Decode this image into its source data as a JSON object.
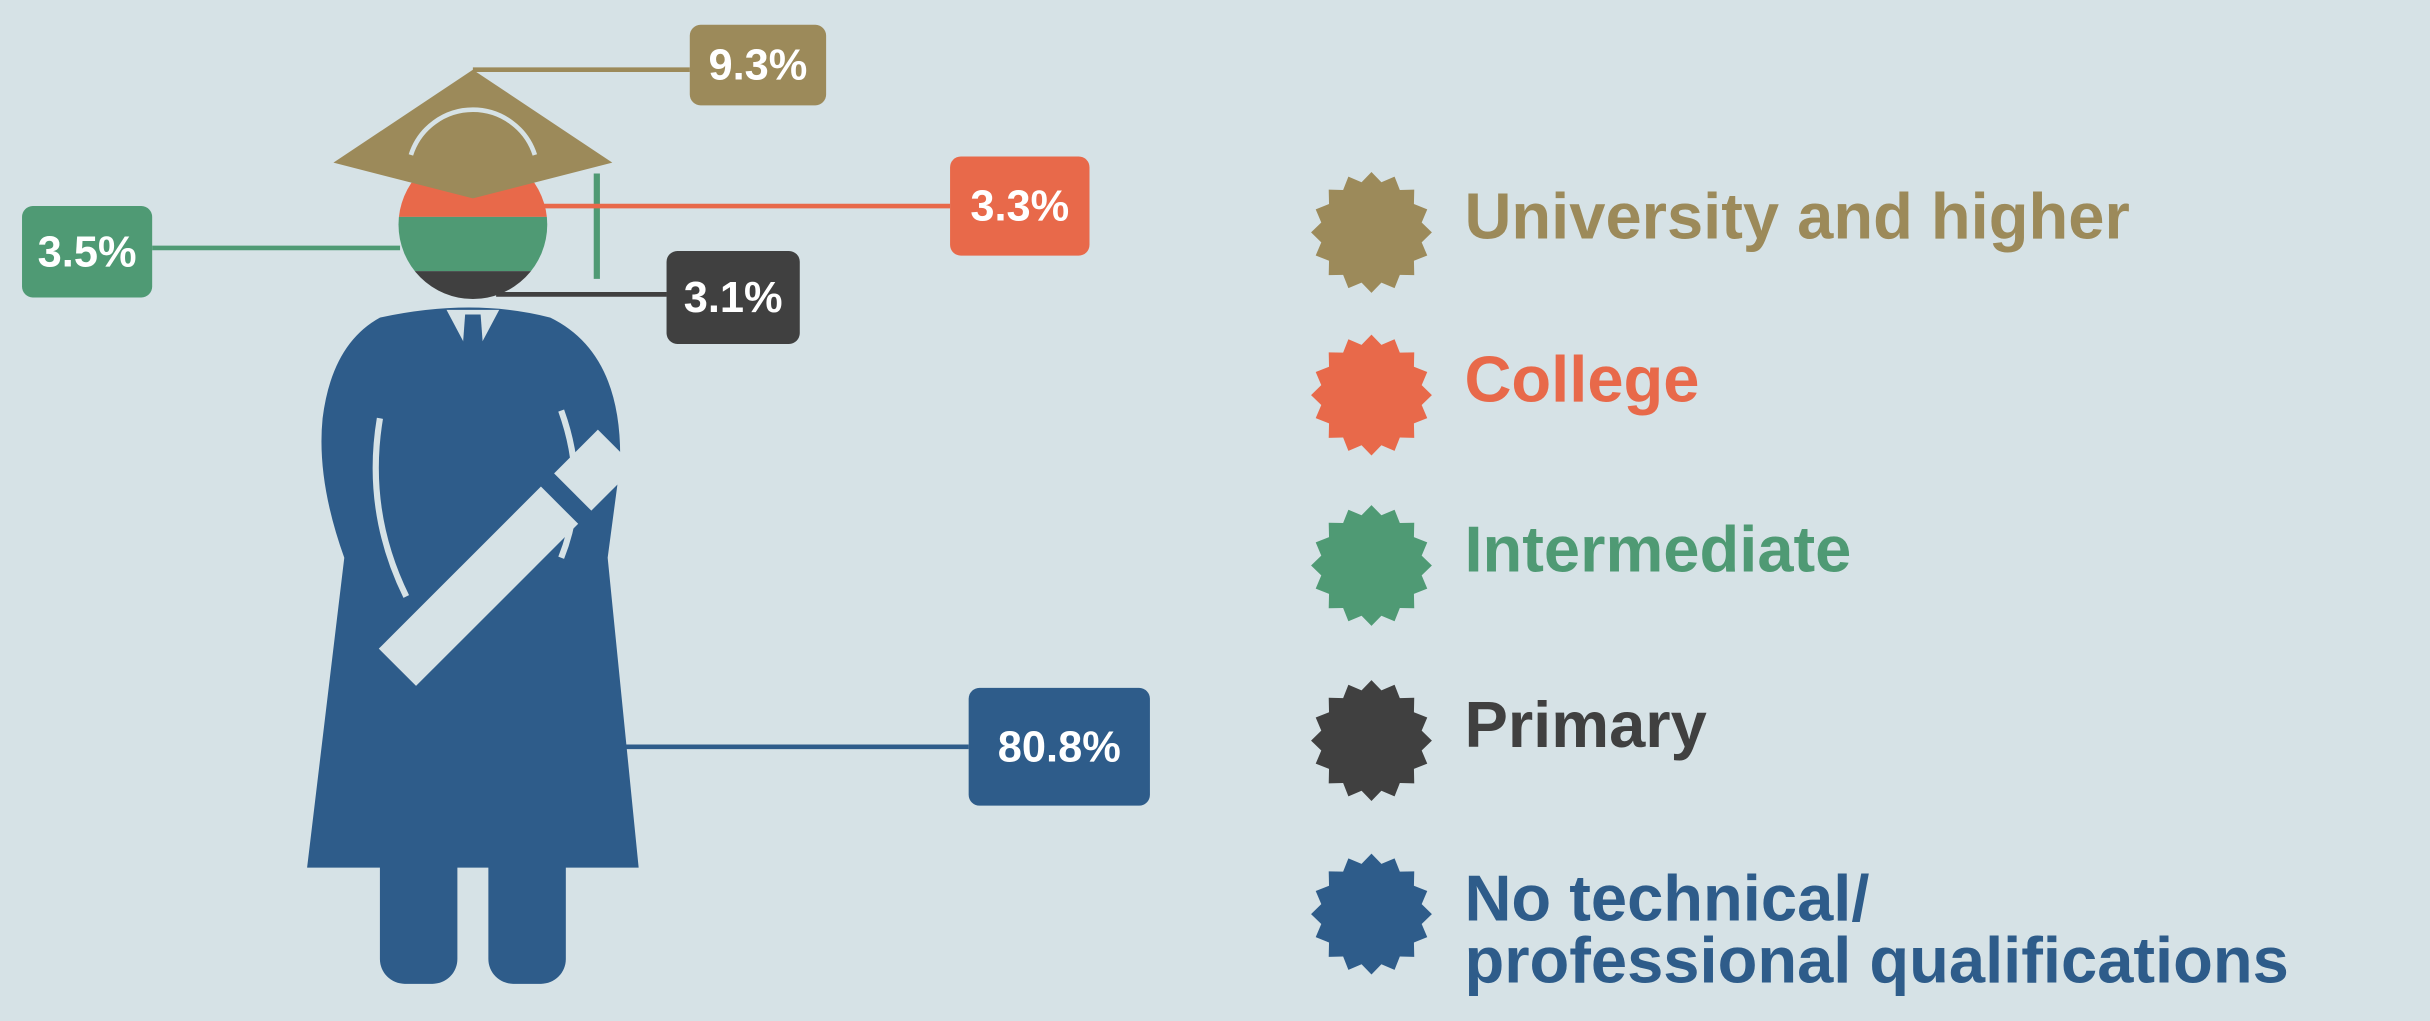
{
  "chart_data": {
    "type": "pictogram",
    "categories": [
      "University and higher",
      "College",
      "Intermediate",
      "Primary",
      "No technical/\nprofessional qualifications"
    ],
    "values": [
      9.3,
      3.3,
      3.5,
      3.1,
      80.8
    ],
    "value_labels": [
      "9.3%",
      "3.3%",
      "3.5%",
      "3.1%",
      "80.8%"
    ],
    "colors": [
      "#9c8a5a",
      "#e8694a",
      "#4f9a74",
      "#404040",
      "#2e5c8a"
    ]
  }
}
